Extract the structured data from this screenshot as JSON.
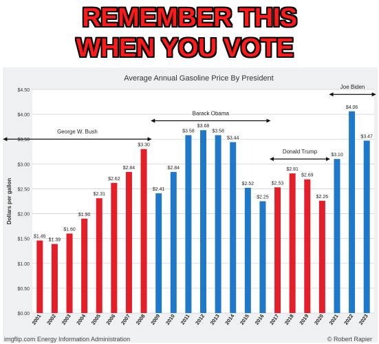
{
  "caption": {
    "line1": "REMEMBER THIS",
    "line2": "WHEN YOU VOTE"
  },
  "footer": {
    "source": "imgflip.com  Energy Information Administration",
    "credit": "© Robert Rapier"
  },
  "colors": {
    "republican": "#e3202a",
    "democrat": "#1f78c8",
    "panel_bg": "#eef0f2",
    "plot_bg": "#ffffff"
  },
  "chart_data": {
    "type": "bar",
    "title": "Average Annual Gasoline Price By President",
    "xlabel": "",
    "ylabel": "Dollars per gallon",
    "ylim": [
      0,
      4.5
    ],
    "yticks": [
      0,
      0.5,
      1.0,
      1.5,
      2.0,
      2.5,
      3.0,
      3.5,
      4.0,
      4.5
    ],
    "ytick_labels": [
      "$0.00",
      "$0.50",
      "$1.00",
      "$1.50",
      "$2.00",
      "$2.50",
      "$3.00",
      "$3.50",
      "$4.00",
      "$4.50"
    ],
    "grid": true,
    "categories": [
      "2001",
      "2002",
      "2003",
      "2004",
      "2005",
      "2006",
      "2007",
      "2008",
      "2009",
      "2010",
      "2011",
      "2012",
      "2013",
      "2014",
      "2015",
      "2016",
      "2017",
      "2018",
      "2019",
      "2020",
      "2021",
      "2022",
      "2023"
    ],
    "values": [
      1.46,
      1.39,
      1.6,
      1.9,
      2.31,
      2.62,
      2.84,
      3.3,
      2.41,
      2.84,
      3.58,
      3.68,
      3.58,
      3.44,
      2.52,
      2.25,
      2.53,
      2.81,
      2.69,
      2.26,
      3.1,
      4.06,
      3.47
    ],
    "labels": [
      "$1.46",
      "$1.39",
      "$1.60",
      "$1.90",
      "$2.31",
      "$2.62",
      "$2.84",
      "$3.30",
      "$2.41",
      "$2.84",
      "$3.58",
      "$3.68",
      "$3.58",
      "$3.44",
      "$2.52",
      "$2.25",
      "$2.53",
      "$2.81",
      "$2.69",
      "$2.26",
      "$3.10",
      "$4.06",
      "$3.47"
    ],
    "party": [
      "R",
      "R",
      "R",
      "R",
      "R",
      "R",
      "R",
      "R",
      "D",
      "D",
      "D",
      "D",
      "D",
      "D",
      "D",
      "D",
      "R",
      "R",
      "R",
      "R",
      "D",
      "D",
      "D"
    ],
    "presidents": [
      {
        "name": "George W. Bush",
        "start": 2001,
        "end": 2008,
        "y": 3.5
      },
      {
        "name": "Barack Obama",
        "start": 2009,
        "end": 2016,
        "y": 3.87
      },
      {
        "name": "Donald Trump",
        "start": 2017,
        "end": 2020,
        "y": 3.1
      },
      {
        "name": "Joe Biden",
        "start": 2021,
        "end": 2023,
        "y": 4.4
      }
    ]
  }
}
